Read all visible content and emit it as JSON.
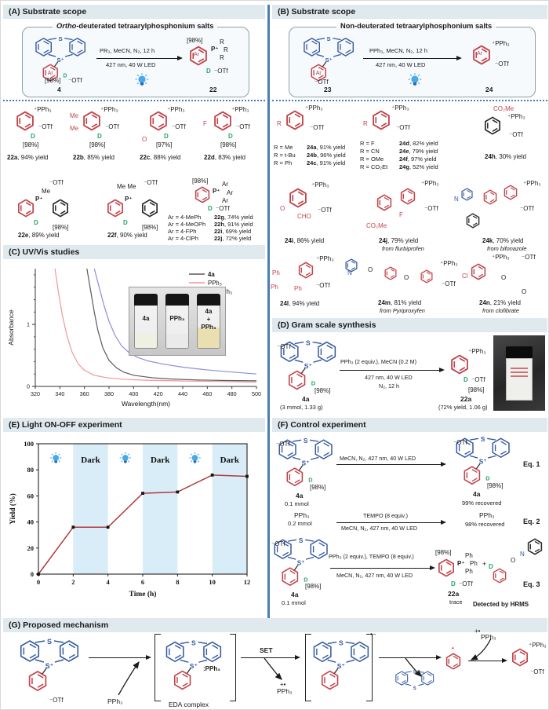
{
  "tokens": {
    "S": "S",
    "Splus": "S⁺",
    "D": "D",
    "Ar": "Ar",
    "dot": "•"
  },
  "panelA": {
    "title": "(A) Substrate scope",
    "box_title_italic": "Ortho",
    "box_title_rest": "-deuterated tetraarylphosphonium salts",
    "reagents1": "PR₃, MeCN, N₂, 12 h",
    "reagents2": "427 nm, 40 W LED",
    "start": {
      "pct": "[98%]",
      "anion": "⁻OTf",
      "id": "4"
    },
    "product": {
      "pct": "[98%]",
      "p": "P⁺",
      "r1": "R",
      "r2": "R",
      "r3": "R",
      "ar": "Ar",
      "d": "D",
      "anion": "⁻OTf",
      "id": "22"
    },
    "row1": [
      {
        "phos": "⁺PPh₃",
        "anion": "⁻OTf",
        "d": "D",
        "pct": "[98%]",
        "cap_id": "22a",
        "cap_rest": ", 94% yield",
        "s1": "",
        "s2": ""
      },
      {
        "phos": "⁺PPh₃",
        "anion": "⁻OTf",
        "d": "D",
        "pct": "[98%]",
        "cap_id": "22b",
        "cap_rest": ", 85% yield",
        "s1": "Me",
        "s2": "Me"
      },
      {
        "phos": "⁺PPh₃",
        "anion": "⁻OTf",
        "d": "D",
        "pct": "[97%]",
        "cap_id": "22c",
        "cap_rest": ", 88% yield",
        "s1": "",
        "s2": "O"
      },
      {
        "phos": "⁺PPh₃",
        "anion": "⁻OTf",
        "d": "D",
        "pct": "[98%]",
        "cap_id": "22d",
        "cap_rest": ", 83% yield",
        "s1": "F",
        "s2": ""
      }
    ],
    "row2": [
      {
        "ptop": "Me",
        "anion": "⁻OTf",
        "p": "P⁺",
        "d": "D",
        "pct": "[98%]",
        "cap_id": "22e",
        "cap_rest": ", 89% yield"
      },
      {
        "ptop": "Me  Me",
        "anion": "⁻OTf",
        "p": "P⁺",
        "d": "D",
        "pct": "[98%]",
        "cap_id": "22f",
        "cap_rest": ", 90% yield"
      }
    ],
    "variants": {
      "pct": "[98%]",
      "p": "P⁺",
      "ar1": "Ar",
      "ar2": "Ar",
      "ar3": "Ar",
      "d": "D",
      "anion": "⁻OTf",
      "lines": [
        {
          "ar": "Ar = 4-MePh",
          "id": "22g",
          "rest": ", 74% yield"
        },
        {
          "ar": "Ar = 4-MeOPh",
          "id": "22h",
          "rest": ", 91% yield"
        },
        {
          "ar": "Ar = 4-FPh",
          "id": "22i",
          "rest": ", 69% yield"
        },
        {
          "ar": "Ar = 4-ClPh",
          "id": "22j",
          "rest": ", 72% yield"
        }
      ]
    }
  },
  "panelB": {
    "title": "(B) Substrate scope",
    "box_title": "Non-deuterated tetraarylphosphonium salts",
    "reagents1": "PPh₃, MeCN, N₂, 12 h",
    "reagents2": "427 nm, 40 W LED",
    "start": {
      "anion": "⁻OTf",
      "id": "23"
    },
    "product": {
      "phos": "⁺PPh₃",
      "anion": "⁻OTf",
      "id": "24",
      "ar": "Ar"
    },
    "g1": {
      "r": "R",
      "phos": "⁺PPh₃",
      "anion": "⁻OTf",
      "lines": [
        {
          "r": "R = Me",
          "id": "24a",
          "rest": ", 91% yield"
        },
        {
          "r": "R = t-Bu",
          "id": "24b",
          "rest": ", 96% yield"
        },
        {
          "r": "R = Ph",
          "id": "24c",
          "rest": ", 91% yield"
        }
      ]
    },
    "g2": {
      "r": "R",
      "phos": "⁺PPh₃",
      "anion": "⁻OTf",
      "lines": [
        {
          "r": "R = F",
          "id": "24d",
          "rest": ", 82% yield"
        },
        {
          "r": "R = CN",
          "id": "24e",
          "rest": ", 79% yield"
        },
        {
          "r": "R = OMe",
          "id": "24f",
          "rest": ", 97% yield"
        },
        {
          "r": "R = CO₂Et",
          "id": "24g",
          "rest": ", 52% yield"
        }
      ]
    },
    "c24h": {
      "top": "CO₂Me",
      "phos": "⁺PPh₃",
      "anion": "⁻OTf",
      "cap_id": "24h",
      "cap_rest": ", 30% yield"
    },
    "c24i": {
      "l1": "O",
      "l2": "CHO",
      "phos": "⁺PPh₃",
      "anion": "⁻OTf",
      "cap_id": "24i",
      "cap_rest": ", 86% yield"
    },
    "c24j": {
      "l1": "F",
      "l2": "CO₂Me",
      "phos": "⁺PPh₃",
      "anion": "⁻OTf",
      "cap_id": "24j",
      "cap_rest": ", 79% yield",
      "src": "from flurbiprofen"
    },
    "c24k": {
      "l1": "N",
      "phos": "⁺PPh₃",
      "anion": "⁻OTf",
      "cap_id": "24k",
      "cap_rest": ", 70% yield",
      "src": "from bifonazole"
    },
    "c24l": {
      "l1": "Ph",
      "l2": "Ph",
      "l3": "Ph",
      "phos": "⁺PPh₃",
      "anion": "⁻OTf",
      "cap_id": "24l",
      "cap_rest": ", 94% yield"
    },
    "c24m": {
      "l1": "N",
      "l2": "O",
      "l3": "O",
      "phos": "⁺PPh₃",
      "anion": "⁻OTf",
      "cap_id": "24m",
      "cap_rest": ", 81% yield",
      "src": "from Pyriproxyfen"
    },
    "c24n": {
      "l1": "Cl",
      "l2": "O",
      "l3": "O",
      "phos": "⁺PPh₃",
      "anion": "⁻OTf",
      "cap_id": "24n",
      "cap_rest": ", 21% yield",
      "src": "from clofibrate"
    }
  },
  "panelC": {
    "title": "(C) UV/Vis studies",
    "inset": {
      "v1": "4a",
      "v2": "PPh₃",
      "v3a": "4a",
      "v3b": "+",
      "v3c": "PPh₃"
    }
  },
  "panelD": {
    "title": "(D) Gram scale synthesis",
    "cond1": "PPh₃ (2 equiv.), MeCN (0.2 M)",
    "cond2": "427 nm, 40 W LED",
    "cond3": "N₂, 12 h",
    "start": {
      "anion": "⁻OTf",
      "d": "D",
      "pct": "[98%]",
      "id": "4a",
      "amt": "(3 mmol, 1.33 g)"
    },
    "product": {
      "phos": "⁺PPh₃",
      "anion": "⁻OTf",
      "d": "D",
      "pct": "[98%]",
      "id": "22a",
      "amt": "(72% yield, 1.06 g)"
    }
  },
  "panelE": {
    "title": "(E) Light ON-OFF experiment"
  },
  "panelF": {
    "title": "(F) Control experiment",
    "eq1": {
      "cond": "MeCN, N₂, 427 nm, 40 W LED",
      "l_anion": "⁻OTf",
      "l_pct": "[98%]",
      "l_id": "4a",
      "l_amt": "0.1 mmol",
      "r_anion": "⁻OTf",
      "r_pct": "[98%]",
      "r_id": "4a",
      "r_res": "99% recovered",
      "tag": "Eq. 1"
    },
    "eq2": {
      "top": "TEMPO (8 equiv.)",
      "bottom": "MeCN, N₂, 427 nm, 40 W LED",
      "l1": "PPh₃",
      "l2": "0.2 mmol",
      "r1": "PPh₃",
      "r2": "98% recovered",
      "tag": "Eq. 2"
    },
    "eq3": {
      "top": "PPh₃ (2 equiv.), TEMPO (8 equiv.)",
      "bottom": "MeCN, N₂, 427 nm, 40 W LED",
      "l_anion": "⁻OTf",
      "l_pct": "[98%]",
      "l_id": "4a",
      "l_amt": "0.1 mmol",
      "p_pct": "[98%]",
      "p_p": "P⁺",
      "p_ph1": "Ph",
      "p_ph2": "Ph",
      "p_ph3": "Ph",
      "p_d": "D",
      "p_anion": "⁻OTf",
      "p_id": "22a",
      "p_res": "trace",
      "plus": "+",
      "t_d": "D",
      "t_o": "O",
      "t_n": "N",
      "hrms": "Detected by HRMS",
      "tag": "Eq. 3"
    }
  },
  "panelG": {
    "title": "(G) Proposed mechanism",
    "m1_anion": "⁻OTf",
    "pph3_in": "PPh₃",
    "colon_pph3": ":PPh₃",
    "eda": "EDA complex",
    "set": "SET",
    "radcat": "+•",
    "pph3_out": "PPh₃",
    "rad_anion": "•−",
    "radical_dot": "•",
    "radcat2": "+•",
    "pph3_in2": "PPh₃",
    "prod_phos": "⁺PPh₃",
    "prod_anion": "⁻OTf"
  },
  "chart_data": [
    {
      "type": "line",
      "title": "UV/Vis studies",
      "xlabel": "Wavelength(nm)",
      "ylabel": "Absorbance",
      "xlim": [
        320,
        500
      ],
      "ylim": [
        0,
        1.9
      ],
      "xticks": [
        320,
        340,
        360,
        380,
        400,
        420,
        440,
        460,
        480,
        500
      ],
      "yticks": [
        0,
        1
      ],
      "grid": false,
      "legend_position": "top-right",
      "series": [
        {
          "name": "4a",
          "color": "#5a5a5a",
          "x": [
            362,
            365,
            368,
            371,
            375,
            380,
            386,
            392,
            400,
            415,
            430,
            450,
            475,
            500
          ],
          "y": [
            1.9,
            1.55,
            1.2,
            0.9,
            0.62,
            0.42,
            0.3,
            0.23,
            0.18,
            0.14,
            0.12,
            0.105,
            0.095,
            0.09
          ]
        },
        {
          "name": "PPh₃",
          "color": "#f0969c",
          "x": [
            336,
            339,
            342,
            346,
            350,
            355,
            360,
            368,
            378,
            392,
            410,
            435,
            465,
            500
          ],
          "y": [
            1.9,
            1.5,
            1.15,
            0.8,
            0.55,
            0.36,
            0.26,
            0.18,
            0.14,
            0.115,
            0.1,
            0.09,
            0.08,
            0.07
          ]
        },
        {
          "name": "4a+PPh₃",
          "color": "#8d8ddb",
          "x": [
            368,
            372,
            376,
            380,
            385,
            390,
            396,
            403,
            412,
            424,
            440,
            458,
            478,
            500
          ],
          "y": [
            1.9,
            1.6,
            1.3,
            1.05,
            0.82,
            0.66,
            0.55,
            0.47,
            0.41,
            0.36,
            0.31,
            0.27,
            0.235,
            0.2
          ]
        }
      ]
    },
    {
      "type": "line",
      "title": "Light ON-OFF experiment",
      "xlabel": "Time (h)",
      "ylabel": "Yield (%)",
      "xlim": [
        0,
        12
      ],
      "ylim": [
        0,
        100
      ],
      "xticks": [
        0,
        2,
        4,
        6,
        8,
        10,
        12
      ],
      "yticks": [
        0,
        20,
        40,
        60,
        80,
        100
      ],
      "line_color": "#b03a3c",
      "marker": "square",
      "x": [
        0,
        2,
        4,
        6,
        8,
        10,
        12
      ],
      "y": [
        0,
        36,
        36,
        62,
        63,
        76,
        75
      ],
      "dark_bands": [
        [
          2,
          4
        ],
        [
          6,
          8
        ],
        [
          10,
          12
        ]
      ],
      "dark_label": "Dark",
      "bulb_x": [
        1,
        5,
        9
      ]
    }
  ]
}
